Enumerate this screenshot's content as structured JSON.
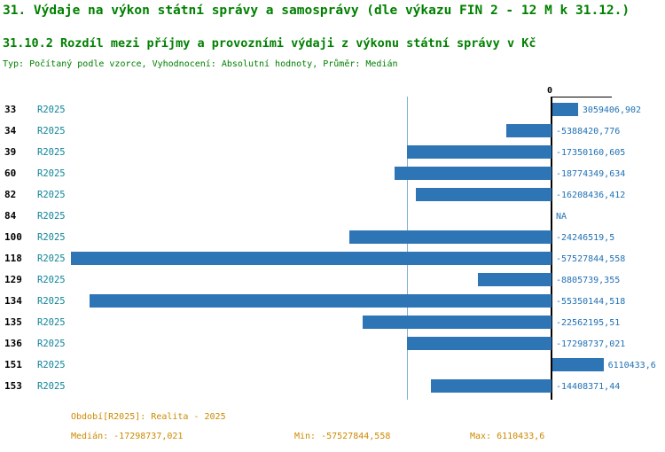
{
  "header": {
    "title": "31. Výdaje na výkon státní správy a samosprávy (dle výkazu FIN 2 - 12 M k 31.12.)",
    "subtitle": "31.10.2 Rozdíl mezi příjmy a provozními výdaji z výkonu státní správy v Kč",
    "meta": "Typ: Počítaný podle vzorce, Vyhodnocení: Absolutní hodnoty, Průměr: Medián"
  },
  "chart_data": {
    "type": "bar",
    "orientation": "horizontal",
    "series_name": "R2025",
    "zero_label": "0",
    "categories": [
      "33",
      "34",
      "39",
      "60",
      "82",
      "84",
      "100",
      "118",
      "129",
      "134",
      "135",
      "136",
      "151",
      "153"
    ],
    "values": [
      3059406.902,
      -5388420.776,
      -17350160.605,
      -18774349.634,
      -16208436.412,
      null,
      -24246519.5,
      -57527844.558,
      -8805739.355,
      -55350144.518,
      -22562195.51,
      -17298737.021,
      6110433.6,
      -14408371.44
    ],
    "value_labels": [
      "3059406,902",
      "-5388420,776",
      "-17350160,605",
      "-18774349,634",
      "-16208436,412",
      "NA",
      "-24246519,5",
      "-57527844,558",
      "-8805739,355",
      "-55350144,518",
      "-22562195,51",
      "-17298737,021",
      "6110433,6",
      "-14408371,44"
    ],
    "xlim": [
      -57527844.558,
      6110433.6
    ],
    "median": -17298737.021,
    "min": -57527844.558,
    "max": 6110433.6,
    "bar_color": "#2e75b6",
    "median_line_color": "#7fb2cf",
    "legend_position": "none",
    "grid": false
  },
  "footer": {
    "period": "Období[R2025]: Realita - 2025",
    "median": "Medián: -17298737,021",
    "min": "Min: -57527844,558",
    "max": "Max: 6110433,6"
  }
}
